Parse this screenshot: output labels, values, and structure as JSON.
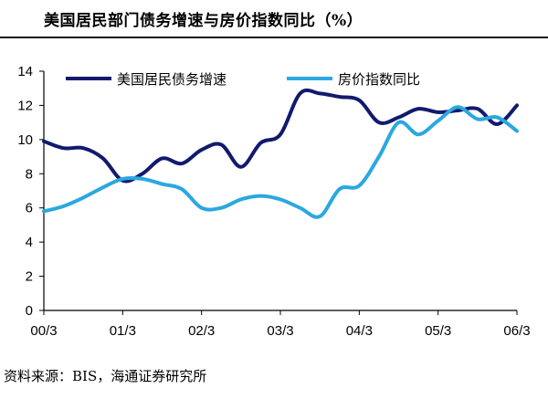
{
  "header": {
    "title": "美国居民部门债务增速与房价指数同比（%）"
  },
  "footer": {
    "source": "资料来源：BIS，海通证券研究所"
  },
  "chart_data": {
    "type": "line",
    "title": "美国居民部门债务增速与房价指数同比（%）",
    "xlabel": "",
    "ylabel": "",
    "ylim": [
      0,
      14
    ],
    "yticks": [
      0,
      2,
      4,
      6,
      8,
      10,
      12,
      14
    ],
    "xlim": [
      0,
      24
    ],
    "xticks": [
      {
        "label": "00/3",
        "x": 0
      },
      {
        "label": "01/3",
        "x": 4
      },
      {
        "label": "02/3",
        "x": 8
      },
      {
        "label": "03/3",
        "x": 12
      },
      {
        "label": "04/3",
        "x": 16
      },
      {
        "label": "05/3",
        "x": 20
      },
      {
        "label": "06/3",
        "x": 24
      }
    ],
    "grid": false,
    "legend_position": "top",
    "series": [
      {
        "name": "美国居民债务增速",
        "color": "#121a6e",
        "x": [
          0,
          1,
          2,
          3,
          4,
          5,
          6,
          7,
          8,
          9,
          10,
          11,
          12,
          13,
          14,
          15,
          16,
          17,
          18,
          19,
          20,
          21,
          22,
          23,
          24
        ],
        "values": [
          9.9,
          9.5,
          9.5,
          8.9,
          7.6,
          8.0,
          8.9,
          8.6,
          9.4,
          9.7,
          8.4,
          9.8,
          10.3,
          12.7,
          12.7,
          12.5,
          12.3,
          11.0,
          11.3,
          11.8,
          11.6,
          11.7,
          11.8,
          10.9,
          12.0
        ]
      },
      {
        "name": "房价指数同比",
        "color": "#2aa8e0",
        "x": [
          0,
          1,
          2,
          3,
          4,
          5,
          6,
          7,
          8,
          9,
          10,
          11,
          12,
          13,
          14,
          15,
          16,
          17,
          18,
          19,
          20,
          21,
          22,
          23,
          24
        ],
        "values": [
          5.8,
          6.1,
          6.6,
          7.2,
          7.7,
          7.7,
          7.4,
          7.1,
          6.0,
          6.0,
          6.5,
          6.7,
          6.5,
          6.0,
          5.5,
          7.1,
          7.3,
          9.0,
          11.0,
          10.3,
          11.1,
          11.9,
          11.2,
          11.3,
          10.5
        ]
      }
    ]
  }
}
